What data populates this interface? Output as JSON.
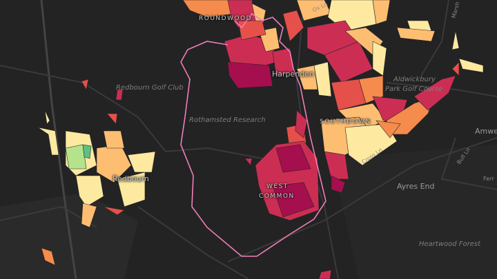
{
  "map": {
    "palette": [
      "#a50f4d",
      "#cc2e53",
      "#e5504a",
      "#f58b4c",
      "#fdbe72",
      "#fde9a0",
      "#b5e38c"
    ],
    "boundary_color": "#f17fb8",
    "labels": {
      "roundwood": "ROUNDWOOD",
      "ox_ln": "Ox Ln",
      "marsh": "Marsh",
      "harpenden": "Harpenden",
      "aldwickbury": "Aldwickbury",
      "aldwickbury2": "Park Golf Course",
      "redbourn_golf": "Redbourn Golf Club",
      "rothamsted": "Rothamsted Research",
      "southdown": "SOUTHDOWN",
      "amwell": "Amwe",
      "redbourn": "Redbourn",
      "west_common_1": "WEST",
      "west_common_2": "COMMON",
      "cross_ln": "Cross Ln",
      "bull_ln": "Bull Ln",
      "ayres_end": "Ayres End",
      "ferr": "Ferr",
      "heartwood": "Heartwood Forest"
    }
  }
}
